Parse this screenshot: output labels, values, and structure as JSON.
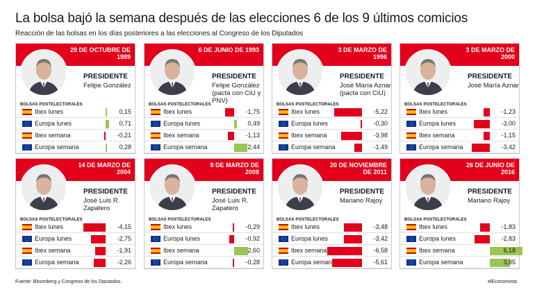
{
  "title": "La bolsa bajó la semana después de las elecciones 6 de los 9 últimos comicios",
  "subtitle": "Reacción de las bolsas en los días posteriores a las elecciones al Congreso de los Diputados",
  "source": "Fuente: Bloomberg y Congreso de los Diputados.",
  "brand": "elEconomista",
  "colors": {
    "negative": "#e2001a",
    "positive": "#9ac555",
    "banner": "#e2001a"
  },
  "chart_data": {
    "type": "bar",
    "categories": [
      "Ibex lunes",
      "Europa lunes",
      "Ibex semana",
      "Europa semana"
    ],
    "section_label": "BOLSAS POSTELECTORALES",
    "panels": [
      {
        "date": "29 DE OCTUBRE DE 1989",
        "role": "PRESIDENTE",
        "person": "Felipe González",
        "coalition": "",
        "values": [
          0.15,
          0.71,
          -0.21,
          0.28
        ],
        "labels": [
          "0,15",
          "0,71",
          "-0,21",
          "0,28"
        ]
      },
      {
        "date": "6 DE JUNIO DE 1993",
        "role": "PRESIDENTE",
        "person": "Felipe González",
        "coalition": "(pacta con CiU y PNV)",
        "values": [
          -1.75,
          0.49,
          -1.13,
          2.44
        ],
        "labels": [
          "-1,75",
          "0,49",
          "-1,13",
          "2,44"
        ]
      },
      {
        "date": "3 DE MARZO DE 1996",
        "role": "PRESIDENTE",
        "person": "José María Aznar",
        "coalition": "(pacta con CiU)",
        "values": [
          -5.22,
          -0.3,
          -3.98,
          -1.49
        ],
        "labels": [
          "-5,22",
          "-0,30",
          "-3,98",
          "-1,49"
        ]
      },
      {
        "date": "3 DE MARZO DE 2000",
        "role": "PRESIDENTE",
        "person": "José María Aznar",
        "coalition": "",
        "values": [
          -1.23,
          -3.0,
          -1.15,
          -3.42
        ],
        "labels": [
          "-1,23",
          "-3,00",
          "-1,15",
          "-3,42"
        ]
      },
      {
        "date": "14 DE MARZO DE 2004",
        "role": "PRESIDENTE",
        "person": "José Luis R. Zapatero",
        "coalition": "",
        "values": [
          -4.15,
          -2.75,
          -1.91,
          -2.26
        ],
        "labels": [
          "-4,15",
          "-2,75",
          "-1,91",
          "-2,26"
        ]
      },
      {
        "date": "9 DE MARZO DE 2008",
        "role": "PRESIDENTE",
        "person": "José Luis R. Zapatero",
        "coalition": "",
        "values": [
          -0.29,
          -0.92,
          2.6,
          -0.28
        ],
        "labels": [
          "-0,29",
          "-0,92",
          "2,60",
          "-0,28"
        ]
      },
      {
        "date": "20 DE NOVIEMBRE DE 2011",
        "role": "PRESIDENTE",
        "person": "Mariano Rajoy",
        "coalition": "",
        "values": [
          -3.48,
          -3.42,
          -6.58,
          -5.61
        ],
        "labels": [
          "-3,48",
          "-3,42",
          "-6,58",
          "-5,61"
        ]
      },
      {
        "date": "26 DE JUNIO DE 2016",
        "role": "PRESIDENTE",
        "person": "Mariano Rajoy",
        "coalition": "",
        "values": [
          -1.83,
          -2.83,
          6.18,
          3.85
        ],
        "labels": [
          "-1,83",
          "-2,83",
          "6,18",
          "3,85"
        ]
      }
    ]
  }
}
